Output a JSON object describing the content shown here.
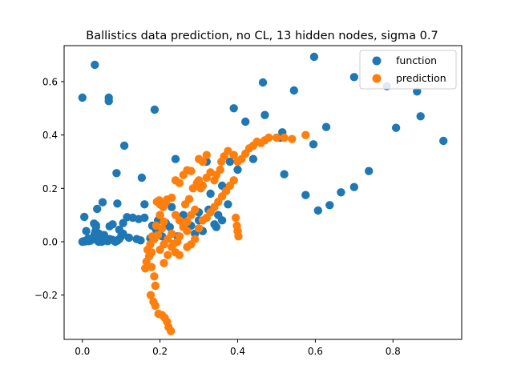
{
  "chart_data": {
    "type": "scatter",
    "title": "Ballistics data prediction, no CL, 13 hidden nodes, sigma 0.7",
    "xlabel": "",
    "ylabel": "",
    "xlim": [
      -0.047,
      0.977
    ],
    "ylim": [
      -0.366,
      0.735
    ],
    "xticks": [
      0.0,
      0.2,
      0.4,
      0.6,
      0.8
    ],
    "xtick_labels": [
      "0.0",
      "0.2",
      "0.4",
      "0.6",
      "0.8"
    ],
    "yticks": [
      -0.2,
      0.0,
      0.2,
      0.4,
      0.6
    ],
    "ytick_labels": [
      "−0.2",
      "0.0",
      "0.2",
      "0.4",
      "0.6"
    ],
    "grid": false,
    "legend_position": "top-right",
    "series": [
      {
        "name": "function",
        "color": "#1f77b4",
        "points": [
          [
            0.0,
            0.0
          ],
          [
            0.003,
            0.002
          ],
          [
            0.006,
            0.001
          ],
          [
            0.009,
            0.003
          ],
          [
            0.012,
            0.005
          ],
          [
            0.015,
            0.002
          ],
          [
            0.018,
            0.006
          ],
          [
            0.021,
            0.004
          ],
          [
            0.025,
            0.01
          ],
          [
            0.028,
            0.015
          ],
          [
            0.03,
            0.02
          ],
          [
            0.032,
            0.03
          ],
          [
            0.034,
            0.04
          ],
          [
            0.036,
            0.008
          ],
          [
            0.038,
            0.012
          ],
          [
            0.04,
            0.003
          ],
          [
            0.042,
            0.0
          ],
          [
            0.045,
            0.005
          ],
          [
            0.048,
            0.01
          ],
          [
            0.05,
            0.015
          ],
          [
            0.053,
            0.02
          ],
          [
            0.056,
            0.025
          ],
          [
            0.06,
            0.005
          ],
          [
            0.065,
            0.002
          ],
          [
            0.07,
            0.01
          ],
          [
            0.075,
            0.008
          ],
          [
            0.08,
            0.005
          ],
          [
            0.085,
            0.003
          ],
          [
            0.09,
            0.004
          ],
          [
            0.095,
            0.01
          ],
          [
            0.1,
            0.02
          ],
          [
            0.105,
            0.03
          ],
          [
            0.0,
            0.54
          ],
          [
            0.032,
            0.663
          ],
          [
            0.068,
            0.54
          ],
          [
            0.068,
            0.527
          ],
          [
            0.186,
            0.495
          ],
          [
            0.108,
            0.36
          ],
          [
            0.088,
            0.257
          ],
          [
            0.153,
            0.24
          ],
          [
            0.005,
            0.093
          ],
          [
            0.03,
            0.068
          ],
          [
            0.035,
            0.055
          ],
          [
            0.038,
            0.123
          ],
          [
            0.052,
            0.148
          ],
          [
            0.07,
            0.058
          ],
          [
            0.078,
            0.065
          ],
          [
            0.09,
            0.143
          ],
          [
            0.105,
            0.07
          ],
          [
            0.115,
            0.092
          ],
          [
            0.13,
            0.09
          ],
          [
            0.145,
            0.085
          ],
          [
            0.16,
            0.09
          ],
          [
            0.16,
            0.14
          ],
          [
            0.18,
            0.06
          ],
          [
            0.195,
            0.08
          ],
          [
            0.2,
            0.1
          ],
          [
            0.215,
            0.07
          ],
          [
            0.23,
            0.13
          ],
          [
            0.24,
            0.31
          ],
          [
            0.26,
            0.1
          ],
          [
            0.28,
            0.06
          ],
          [
            0.29,
            0.03
          ],
          [
            0.3,
            0.08
          ],
          [
            0.31,
            0.04
          ],
          [
            0.32,
            0.3
          ],
          [
            0.33,
            0.18
          ],
          [
            0.34,
            0.065
          ],
          [
            0.35,
            0.1
          ],
          [
            0.36,
            0.08
          ],
          [
            0.37,
            0.19
          ],
          [
            0.38,
            0.3
          ],
          [
            0.39,
            0.5
          ],
          [
            0.4,
            0.27
          ],
          [
            0.42,
            0.45
          ],
          [
            0.44,
            0.31
          ],
          [
            0.465,
            0.597
          ],
          [
            0.47,
            0.475
          ],
          [
            0.51,
            0.39
          ],
          [
            0.515,
            0.41
          ],
          [
            0.52,
            0.253
          ],
          [
            0.545,
            0.567
          ],
          [
            0.575,
            0.175
          ],
          [
            0.595,
            0.365
          ],
          [
            0.597,
            0.693
          ],
          [
            0.607,
            0.117
          ],
          [
            0.628,
            0.43
          ],
          [
            0.637,
            0.137
          ],
          [
            0.666,
            0.185
          ],
          [
            0.7,
            0.205
          ],
          [
            0.7,
            0.617
          ],
          [
            0.738,
            0.265
          ],
          [
            0.784,
            0.583
          ],
          [
            0.808,
            0.427
          ],
          [
            0.862,
            0.563
          ],
          [
            0.871,
            0.47
          ],
          [
            0.93,
            0.378
          ],
          [
            0.01,
            0.04
          ],
          [
            0.015,
            0.012
          ],
          [
            0.035,
            0.062
          ],
          [
            0.043,
            0.03
          ],
          [
            0.05,
            0.0
          ],
          [
            0.06,
            0.012
          ],
          [
            0.085,
            0.0
          ],
          [
            0.095,
            0.045
          ],
          [
            0.12,
            0.015
          ],
          [
            0.14,
            0.01
          ],
          [
            0.15,
            0.005
          ],
          [
            0.175,
            0.013
          ],
          [
            0.19,
            0.045
          ],
          [
            0.205,
            0.02
          ],
          [
            0.225,
            0.055
          ],
          [
            0.245,
            0.02
          ],
          [
            0.27,
            0.045
          ],
          [
            0.3,
            0.11
          ],
          [
            0.325,
            0.12
          ],
          [
            0.345,
            0.055
          ],
          [
            0.36,
            0.21
          ],
          [
            0.375,
            0.14
          ],
          [
            0.4,
            0.04
          ]
        ]
      },
      {
        "name": "prediction",
        "color": "#ff7f0e",
        "points": [
          [
            0.228,
            -0.335
          ],
          [
            0.222,
            -0.32
          ],
          [
            0.218,
            -0.3
          ],
          [
            0.212,
            -0.285
          ],
          [
            0.205,
            -0.275
          ],
          [
            0.196,
            -0.27
          ],
          [
            0.188,
            -0.24
          ],
          [
            0.183,
            -0.225
          ],
          [
            0.176,
            -0.2
          ],
          [
            0.188,
            -0.165
          ],
          [
            0.185,
            -0.13
          ],
          [
            0.178,
            -0.095
          ],
          [
            0.165,
            -0.075
          ],
          [
            0.162,
            -0.1
          ],
          [
            0.172,
            -0.055
          ],
          [
            0.178,
            -0.04
          ],
          [
            0.168,
            -0.03
          ],
          [
            0.175,
            -0.01
          ],
          [
            0.185,
            0.01
          ],
          [
            0.195,
            0.025
          ],
          [
            0.205,
            0.05
          ],
          [
            0.21,
            0.075
          ],
          [
            0.2,
            0.1
          ],
          [
            0.208,
            0.13
          ],
          [
            0.215,
            0.148
          ],
          [
            0.198,
            0.155
          ],
          [
            0.192,
            0.15
          ],
          [
            0.2,
            0.14
          ],
          [
            0.218,
            0.158
          ],
          [
            0.23,
            0.165
          ],
          [
            0.24,
            0.23
          ],
          [
            0.25,
            0.22
          ],
          [
            0.26,
            0.25
          ],
          [
            0.27,
            0.268
          ],
          [
            0.28,
            0.265
          ],
          [
            0.3,
            0.23
          ],
          [
            0.31,
            0.21
          ],
          [
            0.32,
            0.24
          ],
          [
            0.33,
            0.26
          ],
          [
            0.34,
            0.23
          ],
          [
            0.345,
            0.25
          ],
          [
            0.355,
            0.27
          ],
          [
            0.358,
            0.3
          ],
          [
            0.365,
            0.32
          ],
          [
            0.375,
            0.34
          ],
          [
            0.39,
            0.325
          ],
          [
            0.4,
            0.3
          ],
          [
            0.41,
            0.31
          ],
          [
            0.42,
            0.33
          ],
          [
            0.43,
            0.35
          ],
          [
            0.44,
            0.36
          ],
          [
            0.45,
            0.375
          ],
          [
            0.46,
            0.37
          ],
          [
            0.47,
            0.38
          ],
          [
            0.48,
            0.39
          ],
          [
            0.5,
            0.39
          ],
          [
            0.52,
            0.39
          ],
          [
            0.54,
            0.385
          ],
          [
            0.575,
            0.4
          ],
          [
            0.3,
            0.31
          ],
          [
            0.31,
            0.3
          ],
          [
            0.32,
            0.325
          ],
          [
            0.24,
            0.1
          ],
          [
            0.25,
            0.08
          ],
          [
            0.26,
            0.06
          ],
          [
            0.27,
            0.04
          ],
          [
            0.23,
            0.03
          ],
          [
            0.22,
            0.01
          ],
          [
            0.21,
            -0.01
          ],
          [
            0.2,
            -0.03
          ],
          [
            0.23,
            -0.02
          ],
          [
            0.24,
            -0.04
          ],
          [
            0.22,
            -0.05
          ],
          [
            0.21,
            -0.08
          ],
          [
            0.25,
            -0.05
          ],
          [
            0.27,
            -0.02
          ],
          [
            0.28,
            -0.01
          ],
          [
            0.29,
            0.01
          ],
          [
            0.3,
            0.05
          ],
          [
            0.31,
            0.08
          ],
          [
            0.32,
            0.09
          ],
          [
            0.33,
            0.11
          ],
          [
            0.34,
            0.13
          ],
          [
            0.35,
            0.15
          ],
          [
            0.36,
            0.17
          ],
          [
            0.37,
            0.19
          ],
          [
            0.38,
            0.21
          ],
          [
            0.39,
            0.23
          ],
          [
            0.395,
            0.09
          ],
          [
            0.398,
            0.06
          ],
          [
            0.4,
            0.04
          ],
          [
            0.402,
            0.02
          ],
          [
            0.265,
            0.14
          ],
          [
            0.275,
            0.16
          ],
          [
            0.285,
            0.2
          ],
          [
            0.295,
            0.22
          ],
          [
            0.305,
            0.2
          ],
          [
            0.29,
            0.12
          ],
          [
            0.28,
            0.1
          ],
          [
            0.27,
            0.075
          ],
          [
            0.26,
            0.055
          ],
          [
            0.25,
            0.02
          ],
          [
            0.245,
            0.0
          ],
          [
            0.235,
            -0.008
          ],
          [
            0.18,
            0.02
          ],
          [
            0.19,
            0.06
          ]
        ]
      }
    ]
  }
}
